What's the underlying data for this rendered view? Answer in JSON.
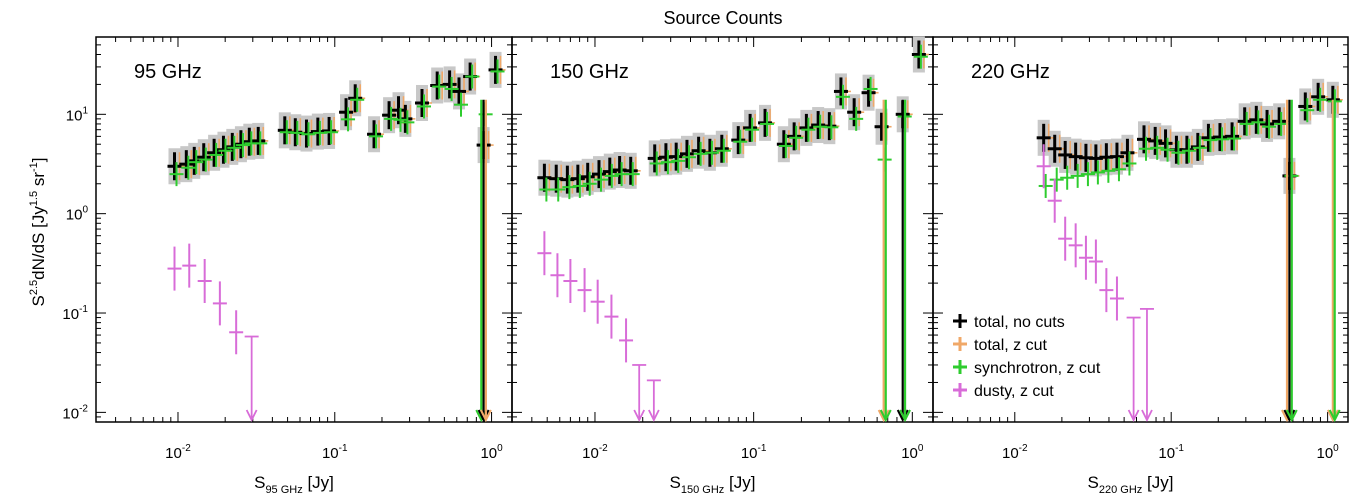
{
  "figure": {
    "title": "Source Counts",
    "ylabel": "S2.5dN/dS [Jy1.5 sr-1]",
    "ylabel_parts": {
      "base": "S",
      "sup1": "2.5",
      "mid": "dN/dS [Jy",
      "sup2": "1.5",
      "mid2": " sr",
      "sup3": "-1",
      "end": "]"
    },
    "yticks": [
      {
        "exp": "-2",
        "value": 0.01
      },
      {
        "exp": "-1",
        "value": 0.1
      },
      {
        "exp": "0",
        "value": 1
      },
      {
        "exp": "1",
        "value": 10
      }
    ],
    "xticks": [
      {
        "exp": "-2",
        "value": 0.01
      },
      {
        "exp": "-1",
        "value": 0.1
      },
      {
        "exp": "0",
        "value": 1
      }
    ],
    "ylim": [
      0.008,
      60
    ],
    "xlim": [
      0.003,
      1.35
    ],
    "scale": "log-log",
    "legend_placement": "lower-left of third panel",
    "colors": {
      "total_no_cuts": "#000000",
      "total_z_cut": "#f0a868",
      "synchrotron": "#2ecc2e",
      "dusty": "#d86cd8",
      "gray_box": "#c8c8c8"
    }
  },
  "legend": [
    {
      "label": "total, no cuts",
      "color": "#000000"
    },
    {
      "label": "total, z cut",
      "color": "#f0a868"
    },
    {
      "label": "synchrotron, z cut",
      "color": "#2ecc2e"
    },
    {
      "label": "dusty, z cut",
      "color": "#d86cd8"
    }
  ],
  "chart_data": [
    {
      "type": "scatter",
      "panel_label": "95 GHz",
      "xlabel": {
        "base": "S",
        "sub": "95 GHz",
        "unit": " [Jy]"
      },
      "series": [
        {
          "name": "total, no cuts",
          "points": [
            {
              "x": 0.0095,
              "y": 3.0
            },
            {
              "x": 0.0113,
              "y": 3.15
            },
            {
              "x": 0.0127,
              "y": 3.4
            },
            {
              "x": 0.0146,
              "y": 3.7
            },
            {
              "x": 0.017,
              "y": 4.1
            },
            {
              "x": 0.0195,
              "y": 4.4
            },
            {
              "x": 0.0222,
              "y": 4.7
            },
            {
              "x": 0.0252,
              "y": 5.0
            },
            {
              "x": 0.0285,
              "y": 5.3
            },
            {
              "x": 0.0325,
              "y": 5.4
            },
            {
              "x": 0.048,
              "y": 6.9
            },
            {
              "x": 0.056,
              "y": 6.6
            },
            {
              "x": 0.066,
              "y": 6.4
            },
            {
              "x": 0.078,
              "y": 6.7
            },
            {
              "x": 0.092,
              "y": 6.8
            },
            {
              "x": 0.118,
              "y": 10.5
            },
            {
              "x": 0.135,
              "y": 14.5
            },
            {
              "x": 0.178,
              "y": 6.3
            },
            {
              "x": 0.222,
              "y": 9.8
            },
            {
              "x": 0.255,
              "y": 11.0
            },
            {
              "x": 0.282,
              "y": 9.0
            },
            {
              "x": 0.36,
              "y": 13.0
            },
            {
              "x": 0.45,
              "y": 19.5
            },
            {
              "x": 0.54,
              "y": 20.0
            },
            {
              "x": 0.62,
              "y": 17.0
            },
            {
              "x": 0.73,
              "y": 24.0
            },
            {
              "x": 0.89,
              "y": 4.9
            },
            {
              "x": 1.06,
              "y": 28.0
            }
          ]
        },
        {
          "name": "synchrotron, z cut",
          "points": [
            {
              "x": 0.0095,
              "y": 2.5
            },
            {
              "x": 0.0113,
              "y": 2.9
            },
            {
              "x": 0.0127,
              "y": 3.3
            },
            {
              "x": 0.0146,
              "y": 3.5
            },
            {
              "x": 0.017,
              "y": 3.9
            },
            {
              "x": 0.0195,
              "y": 4.3
            },
            {
              "x": 0.0222,
              "y": 4.6
            },
            {
              "x": 0.0252,
              "y": 4.9
            },
            {
              "x": 0.0285,
              "y": 5.1
            },
            {
              "x": 0.0325,
              "y": 5.1
            },
            {
              "x": 0.048,
              "y": 6.6
            },
            {
              "x": 0.056,
              "y": 6.5
            },
            {
              "x": 0.066,
              "y": 6.3
            },
            {
              "x": 0.078,
              "y": 6.5
            },
            {
              "x": 0.092,
              "y": 6.6
            },
            {
              "x": 0.118,
              "y": 8.9
            },
            {
              "x": 0.135,
              "y": 14.0
            },
            {
              "x": 0.178,
              "y": 6.0
            },
            {
              "x": 0.222,
              "y": 9.0
            },
            {
              "x": 0.255,
              "y": 8.8
            },
            {
              "x": 0.282,
              "y": 8.3
            },
            {
              "x": 0.36,
              "y": 12.0
            },
            {
              "x": 0.45,
              "y": 19.0
            },
            {
              "x": 0.54,
              "y": 18.0
            },
            {
              "x": 0.62,
              "y": 12.5
            },
            {
              "x": 0.73,
              "y": 24.0
            },
            {
              "x": 0.89,
              "y": 10.0
            },
            {
              "x": 1.06,
              "y": 27.0
            }
          ]
        },
        {
          "name": "dusty, z cut",
          "points": [
            {
              "x": 0.0095,
              "y": 0.28
            },
            {
              "x": 0.0118,
              "y": 0.3
            },
            {
              "x": 0.0148,
              "y": 0.21
            },
            {
              "x": 0.0185,
              "y": 0.125
            },
            {
              "x": 0.0235,
              "y": 0.064
            },
            {
              "x": 0.0295,
              "y": 0.058
            }
          ]
        }
      ]
    },
    {
      "type": "scatter",
      "panel_label": "150 GHz",
      "xlabel": {
        "base": "S",
        "sub": "150 GHz",
        "unit": " [Jy]"
      },
      "series": [
        {
          "name": "total, no cuts",
          "points": [
            {
              "x": 0.0048,
              "y": 2.3
            },
            {
              "x": 0.0057,
              "y": 2.25
            },
            {
              "x": 0.0067,
              "y": 2.2
            },
            {
              "x": 0.0078,
              "y": 2.25
            },
            {
              "x": 0.009,
              "y": 2.35
            },
            {
              "x": 0.0106,
              "y": 2.5
            },
            {
              "x": 0.0124,
              "y": 2.65
            },
            {
              "x": 0.0143,
              "y": 2.75
            },
            {
              "x": 0.0168,
              "y": 2.7
            },
            {
              "x": 0.0238,
              "y": 3.6
            },
            {
              "x": 0.028,
              "y": 3.7
            },
            {
              "x": 0.0325,
              "y": 3.75
            },
            {
              "x": 0.038,
              "y": 4.0
            },
            {
              "x": 0.045,
              "y": 4.3
            },
            {
              "x": 0.053,
              "y": 4.1
            },
            {
              "x": 0.063,
              "y": 4.5
            },
            {
              "x": 0.08,
              "y": 5.5
            },
            {
              "x": 0.095,
              "y": 7.3
            },
            {
              "x": 0.118,
              "y": 8.2
            },
            {
              "x": 0.155,
              "y": 5.0
            },
            {
              "x": 0.18,
              "y": 6.0
            },
            {
              "x": 0.215,
              "y": 7.3
            },
            {
              "x": 0.255,
              "y": 7.8
            },
            {
              "x": 0.3,
              "y": 7.6
            },
            {
              "x": 0.355,
              "y": 17.0
            },
            {
              "x": 0.43,
              "y": 10.5
            },
            {
              "x": 0.53,
              "y": 16.5
            },
            {
              "x": 0.64,
              "y": 7.5
            },
            {
              "x": 0.87,
              "y": 10.0
            },
            {
              "x": 1.1,
              "y": 40.0
            }
          ]
        },
        {
          "name": "synchrotron, z cut",
          "points": [
            {
              "x": 0.0048,
              "y": 1.75
            },
            {
              "x": 0.0057,
              "y": 1.75
            },
            {
              "x": 0.0067,
              "y": 1.85
            },
            {
              "x": 0.0078,
              "y": 1.9
            },
            {
              "x": 0.009,
              "y": 2.0
            },
            {
              "x": 0.0106,
              "y": 2.2
            },
            {
              "x": 0.0124,
              "y": 2.4
            },
            {
              "x": 0.0143,
              "y": 2.5
            },
            {
              "x": 0.0168,
              "y": 2.5
            },
            {
              "x": 0.0238,
              "y": 3.2
            },
            {
              "x": 0.028,
              "y": 3.3
            },
            {
              "x": 0.0325,
              "y": 3.4
            },
            {
              "x": 0.038,
              "y": 3.7
            },
            {
              "x": 0.045,
              "y": 4.0
            },
            {
              "x": 0.053,
              "y": 4.1
            },
            {
              "x": 0.063,
              "y": 4.3
            },
            {
              "x": 0.08,
              "y": 5.3
            },
            {
              "x": 0.095,
              "y": 7.0
            },
            {
              "x": 0.118,
              "y": 8.0
            },
            {
              "x": 0.155,
              "y": 4.8
            },
            {
              "x": 0.18,
              "y": 5.8
            },
            {
              "x": 0.215,
              "y": 7.0
            },
            {
              "x": 0.255,
              "y": 7.5
            },
            {
              "x": 0.3,
              "y": 7.4
            },
            {
              "x": 0.355,
              "y": 15.0
            },
            {
              "x": 0.43,
              "y": 9.0
            },
            {
              "x": 0.53,
              "y": 18.0
            },
            {
              "x": 0.65,
              "y": 3.5
            },
            {
              "x": 0.87,
              "y": 9.5
            },
            {
              "x": 1.1,
              "y": 38.0
            }
          ]
        },
        {
          "name": "dusty, z cut",
          "points": [
            {
              "x": 0.0048,
              "y": 0.4
            },
            {
              "x": 0.0058,
              "y": 0.24
            },
            {
              "x": 0.007,
              "y": 0.21
            },
            {
              "x": 0.0086,
              "y": 0.17
            },
            {
              "x": 0.0104,
              "y": 0.13
            },
            {
              "x": 0.0127,
              "y": 0.092
            },
            {
              "x": 0.0157,
              "y": 0.053
            },
            {
              "x": 0.019,
              "y": 0.03
            },
            {
              "x": 0.0235,
              "y": 0.021
            }
          ]
        }
      ]
    },
    {
      "type": "scatter",
      "panel_label": "220 GHz",
      "xlabel": {
        "base": "S",
        "sub": "220 GHz",
        "unit": " [Jy]"
      },
      "series": [
        {
          "name": "total, no cuts",
          "points": [
            {
              "x": 0.0153,
              "y": 5.8
            },
            {
              "x": 0.018,
              "y": 4.5
            },
            {
              "x": 0.021,
              "y": 3.9
            },
            {
              "x": 0.0245,
              "y": 3.75
            },
            {
              "x": 0.0285,
              "y": 3.65
            },
            {
              "x": 0.033,
              "y": 3.6
            },
            {
              "x": 0.0385,
              "y": 3.7
            },
            {
              "x": 0.045,
              "y": 3.75
            },
            {
              "x": 0.0525,
              "y": 4.1
            },
            {
              "x": 0.067,
              "y": 5.6
            },
            {
              "x": 0.079,
              "y": 5.4
            },
            {
              "x": 0.092,
              "y": 5.1
            },
            {
              "x": 0.108,
              "y": 4.4
            },
            {
              "x": 0.126,
              "y": 4.4
            },
            {
              "x": 0.148,
              "y": 4.7
            },
            {
              "x": 0.173,
              "y": 5.8
            },
            {
              "x": 0.205,
              "y": 5.9
            },
            {
              "x": 0.245,
              "y": 6.0
            },
            {
              "x": 0.295,
              "y": 8.5
            },
            {
              "x": 0.35,
              "y": 8.8
            },
            {
              "x": 0.41,
              "y": 8.0
            },
            {
              "x": 0.49,
              "y": 8.5
            },
            {
              "x": 0.57,
              "y": 2.4
            },
            {
              "x": 0.72,
              "y": 12.0
            },
            {
              "x": 0.87,
              "y": 15.0
            },
            {
              "x": 1.08,
              "y": 14.0
            }
          ]
        },
        {
          "name": "synchrotron, z cut",
          "points": [
            {
              "x": 0.0153,
              "y": 1.9
            },
            {
              "x": 0.018,
              "y": 2.2
            },
            {
              "x": 0.021,
              "y": 2.3
            },
            {
              "x": 0.0245,
              "y": 2.4
            },
            {
              "x": 0.0285,
              "y": 2.5
            },
            {
              "x": 0.033,
              "y": 2.6
            },
            {
              "x": 0.0385,
              "y": 2.7
            },
            {
              "x": 0.045,
              "y": 2.8
            },
            {
              "x": 0.0525,
              "y": 3.2
            },
            {
              "x": 0.067,
              "y": 4.5
            },
            {
              "x": 0.079,
              "y": 4.6
            },
            {
              "x": 0.092,
              "y": 4.4
            },
            {
              "x": 0.108,
              "y": 4.1
            },
            {
              "x": 0.126,
              "y": 4.3
            },
            {
              "x": 0.148,
              "y": 4.6
            },
            {
              "x": 0.173,
              "y": 5.5
            },
            {
              "x": 0.205,
              "y": 5.6
            },
            {
              "x": 0.245,
              "y": 5.7
            },
            {
              "x": 0.295,
              "y": 8.0
            },
            {
              "x": 0.35,
              "y": 8.3
            },
            {
              "x": 0.41,
              "y": 7.5
            },
            {
              "x": 0.49,
              "y": 8.0
            },
            {
              "x": 0.57,
              "y": 2.4
            },
            {
              "x": 0.72,
              "y": 11.0
            },
            {
              "x": 0.87,
              "y": 14.0
            },
            {
              "x": 1.08,
              "y": 13.5
            }
          ]
        },
        {
          "name": "dusty, z cut",
          "points": [
            {
              "x": 0.0153,
              "y": 3.0
            },
            {
              "x": 0.018,
              "y": 1.35
            },
            {
              "x": 0.021,
              "y": 0.56
            },
            {
              "x": 0.0245,
              "y": 0.48
            },
            {
              "x": 0.0285,
              "y": 0.36
            },
            {
              "x": 0.033,
              "y": 0.33
            },
            {
              "x": 0.0385,
              "y": 0.17
            },
            {
              "x": 0.045,
              "y": 0.14
            },
            {
              "x": 0.0575,
              "y": 0.09
            },
            {
              "x": 0.07,
              "y": 0.11
            }
          ]
        }
      ]
    }
  ]
}
